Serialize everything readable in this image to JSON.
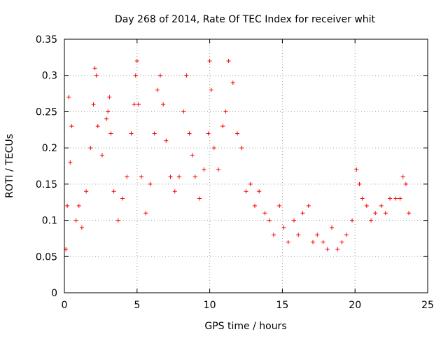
{
  "chart_data": {
    "type": "scatter",
    "title": "Day 268 of 2014, Rate Of TEC Index for receiver whit",
    "xlabel": "GPS time / hours",
    "ylabel": "ROTI / TECUs",
    "xlim": [
      0,
      25
    ],
    "ylim": [
      0,
      0.35
    ],
    "xticks": [
      0,
      5,
      10,
      15,
      20,
      25
    ],
    "yticks": [
      0,
      0.05,
      0.1,
      0.15,
      0.2,
      0.25,
      0.3,
      0.35
    ],
    "xtick_labels": [
      "0",
      "5",
      "10",
      "15",
      "20",
      "25"
    ],
    "ytick_labels": [
      "0",
      "0.05",
      "0.1",
      "0.15",
      "0.2",
      "0.25",
      "0.3",
      "0.35"
    ],
    "grid": true,
    "marker": "+",
    "color": "#ff0000",
    "series": [
      {
        "x": [
          0.1,
          0.2,
          0.3,
          0.4,
          0.5,
          0.8,
          1.0,
          1.2,
          1.5,
          1.8,
          2.0,
          2.1,
          2.2,
          2.3,
          2.6,
          2.9,
          3.0,
          3.1,
          3.2,
          3.4,
          3.7,
          4.0,
          4.3,
          4.6,
          4.8,
          4.9,
          5.0,
          5.1,
          5.3,
          5.6,
          5.9,
          6.2,
          6.4,
          6.6,
          6.8,
          7.0,
          7.3,
          7.6,
          7.9,
          8.2,
          8.4,
          8.6,
          8.8,
          9.0,
          9.3,
          9.6,
          9.9,
          10.0,
          10.1,
          10.3,
          10.6,
          10.9,
          11.1,
          11.3,
          11.6,
          11.9,
          12.2,
          12.5,
          12.8,
          13.1,
          13.4,
          13.8,
          14.1,
          14.4,
          14.8,
          15.1,
          15.4,
          15.8,
          16.1,
          16.4,
          16.8,
          17.1,
          17.4,
          17.8,
          18.1,
          18.4,
          18.8,
          19.1,
          19.4,
          19.8,
          20.1,
          20.3,
          20.5,
          20.8,
          21.1,
          21.4,
          21.8,
          22.1,
          22.4,
          22.8,
          23.1,
          23.3,
          23.5,
          23.7
        ],
        "y": [
          0.06,
          0.12,
          0.27,
          0.18,
          0.23,
          0.1,
          0.12,
          0.09,
          0.14,
          0.2,
          0.26,
          0.31,
          0.3,
          0.23,
          0.19,
          0.24,
          0.25,
          0.27,
          0.22,
          0.14,
          0.1,
          0.13,
          0.16,
          0.22,
          0.26,
          0.3,
          0.32,
          0.26,
          0.16,
          0.11,
          0.15,
          0.22,
          0.28,
          0.3,
          0.26,
          0.21,
          0.16,
          0.14,
          0.16,
          0.25,
          0.3,
          0.22,
          0.19,
          0.16,
          0.13,
          0.17,
          0.22,
          0.32,
          0.28,
          0.2,
          0.17,
          0.23,
          0.25,
          0.32,
          0.29,
          0.22,
          0.2,
          0.14,
          0.15,
          0.12,
          0.14,
          0.11,
          0.1,
          0.08,
          0.12,
          0.09,
          0.07,
          0.1,
          0.08,
          0.11,
          0.12,
          0.07,
          0.08,
          0.07,
          0.06,
          0.09,
          0.06,
          0.07,
          0.08,
          0.1,
          0.17,
          0.15,
          0.13,
          0.12,
          0.1,
          0.11,
          0.12,
          0.11,
          0.13,
          0.13,
          0.13,
          0.16,
          0.15,
          0.11
        ]
      }
    ]
  }
}
